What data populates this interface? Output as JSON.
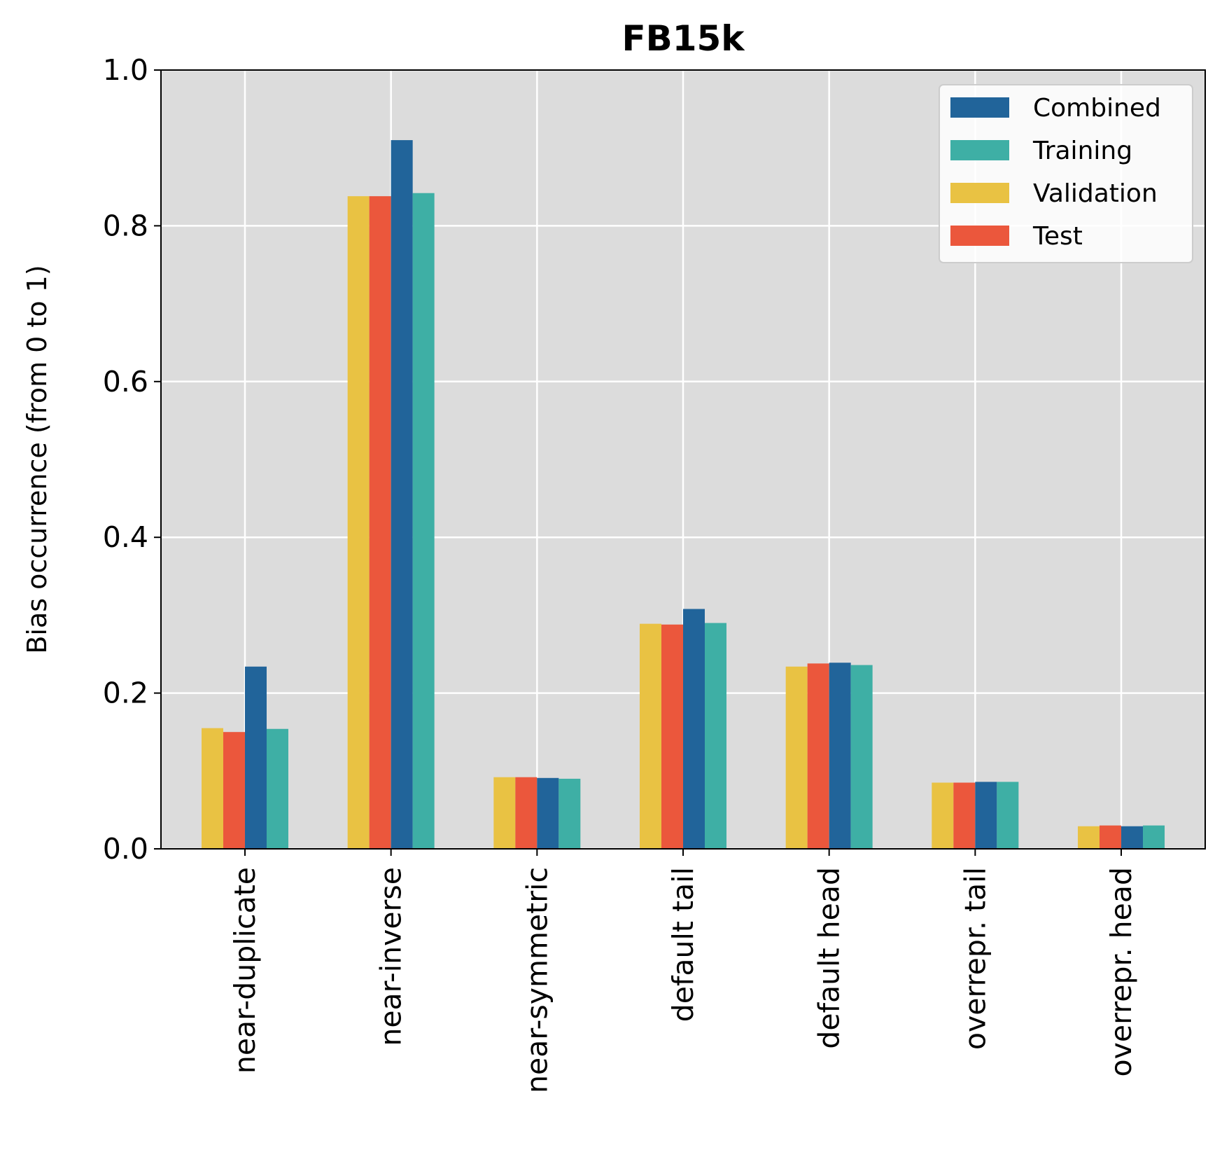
{
  "chart_data": {
    "type": "bar",
    "title": "FB15k",
    "xlabel": "",
    "ylabel": "Bias occurrence (from 0 to 1)",
    "ylim": [
      0,
      1.0
    ],
    "yticks": [
      "0.0",
      "0.2",
      "0.4",
      "0.6",
      "0.8",
      "1.0"
    ],
    "grid": true,
    "legend_position": "top-right",
    "categories": [
      "near-duplicate",
      "near-inverse",
      "near-symmetric",
      "default tail",
      "default head",
      "overrepr. tail",
      "overrepr. head"
    ],
    "series": [
      {
        "name": "Validation",
        "color": "#E9C243",
        "values": [
          0.155,
          0.838,
          0.092,
          0.289,
          0.234,
          0.085,
          0.029
        ]
      },
      {
        "name": "Test",
        "color": "#EB573C",
        "values": [
          0.15,
          0.838,
          0.092,
          0.288,
          0.238,
          0.085,
          0.03
        ]
      },
      {
        "name": "Combined",
        "color": "#21649A",
        "values": [
          0.234,
          0.91,
          0.091,
          0.308,
          0.239,
          0.086,
          0.029
        ]
      },
      {
        "name": "Training",
        "color": "#3EAFA5",
        "values": [
          0.154,
          0.842,
          0.09,
          0.29,
          0.236,
          0.086,
          0.03
        ]
      }
    ],
    "legend_order": [
      "Combined",
      "Training",
      "Validation",
      "Test"
    ]
  },
  "colors": {
    "plot_background": "#DCDCDC",
    "grid": "#FFFFFF",
    "axis": "#000000"
  }
}
